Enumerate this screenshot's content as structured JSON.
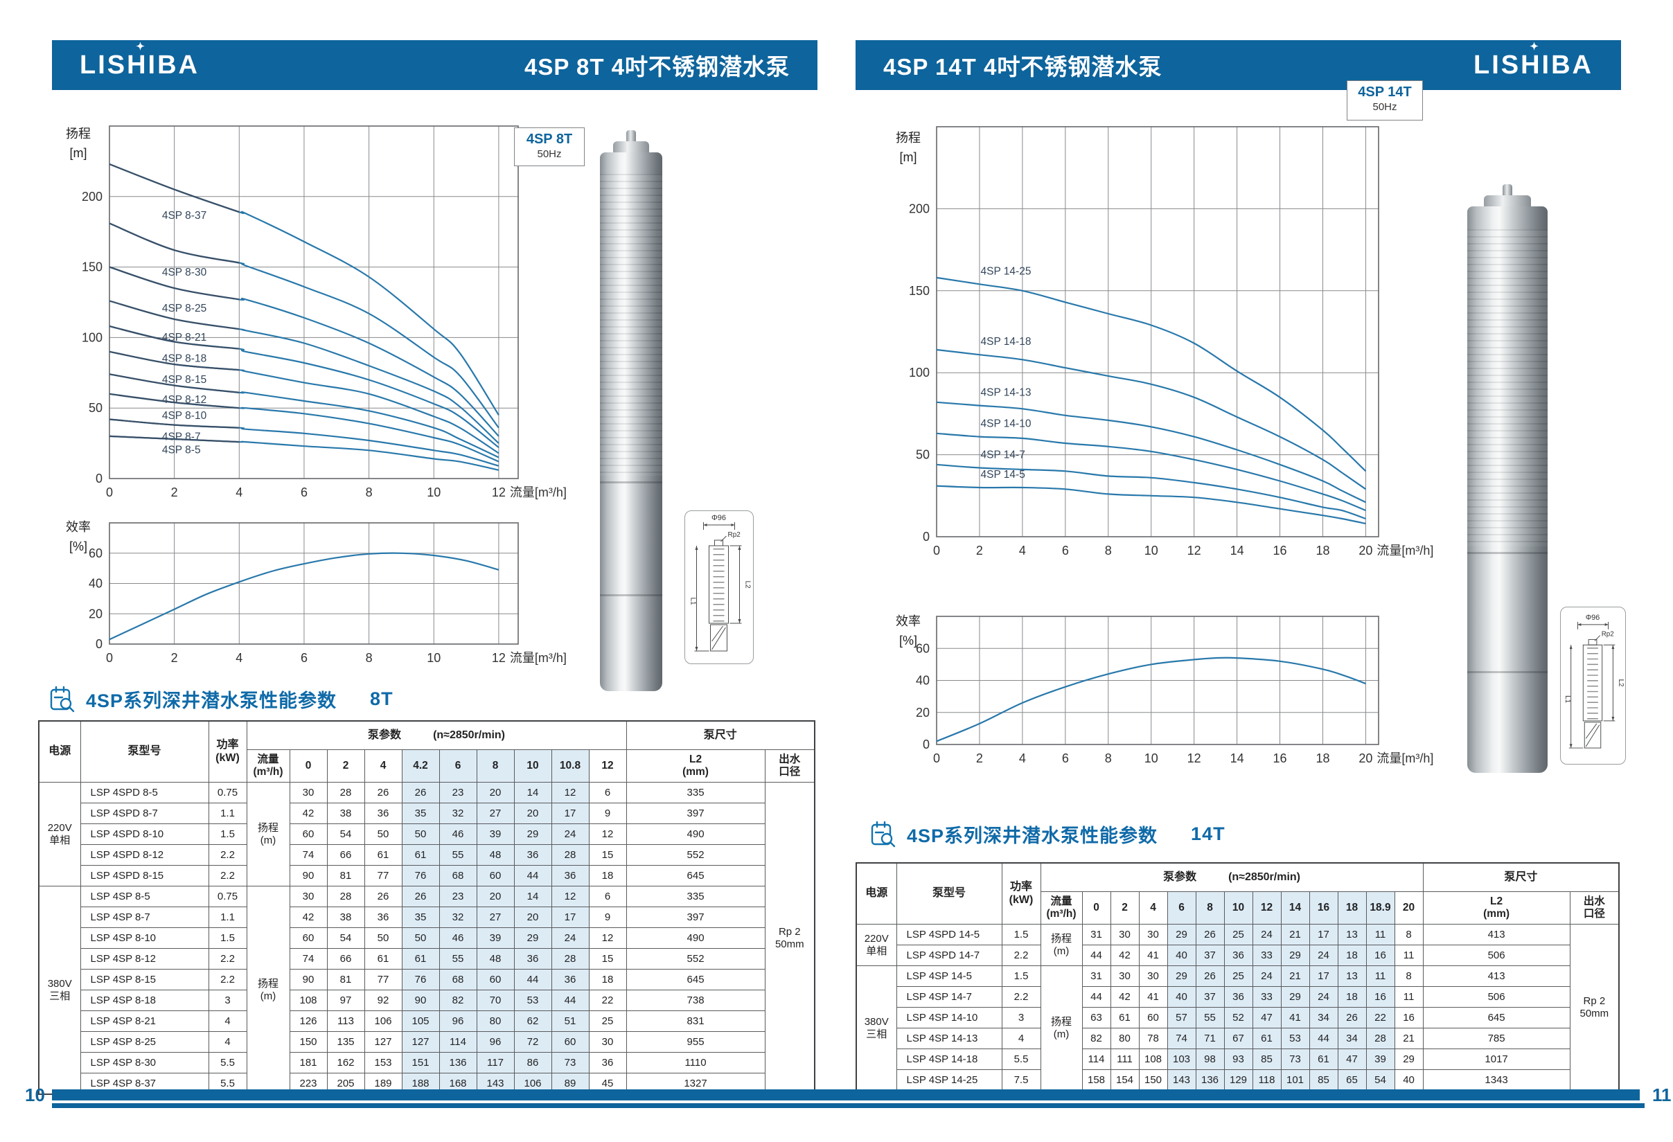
{
  "brand": {
    "logo_text": "LISHIBA"
  },
  "colors": {
    "primary": "#0e649c",
    "curve": "#2878ab",
    "curve_dark": "#3a4f66",
    "highlight": "#ddebf5",
    "title_blue": "#0f6aa8"
  },
  "axis": {
    "head_label": "扬程",
    "head_unit": "[m]",
    "eff_label": "效率",
    "eff_unit": "[%]",
    "flow_unit": "流量[m³/h]"
  },
  "diagram": {
    "diameter": "Φ96",
    "thread": "Rp2",
    "l2": "L2",
    "l1": "L1"
  },
  "footer": {
    "left_page": "10",
    "right_page": "11"
  },
  "left_page": {
    "header_title": "4SP 8T 4吋不锈钢潜水泵",
    "badge": {
      "model": "4SP 8T",
      "freq": "50Hz"
    },
    "section_title": "4SP系列深井潜水泵性能参数",
    "section_code": "8T",
    "table": {
      "headers": {
        "power_source": "电源",
        "model": "泵型号",
        "power": "功率\n(kW)",
        "pump_params": "泵参数",
        "speed": "(n≈2850r/min)",
        "flow": "流量\n(m³/h)",
        "pump_size": "泵尺寸",
        "l2": "L2\n(mm)",
        "outlet": "出水\n口径",
        "head_label": "扬程\n(m)"
      },
      "flow_columns": [
        "0",
        "2",
        "4",
        "4.2",
        "6",
        "8",
        "10",
        "10.8",
        "12"
      ],
      "highlight_flows": [
        "4.2",
        "6",
        "8",
        "10",
        "10.8"
      ],
      "outlet_value": "Rp 2\n50mm",
      "groups": [
        {
          "power_source": "220V\n单相",
          "rows": [
            {
              "model": "LSP 4SPD 8-5",
              "power": "0.75",
              "heads": [
                30,
                28,
                26,
                26,
                23,
                20,
                14,
                12,
                6
              ],
              "l2": "335"
            },
            {
              "model": "LSP 4SPD 8-7",
              "power": "1.1",
              "heads": [
                42,
                38,
                36,
                35,
                32,
                27,
                20,
                17,
                9
              ],
              "l2": "397"
            },
            {
              "model": "LSP 4SPD 8-10",
              "power": "1.5",
              "heads": [
                60,
                54,
                50,
                50,
                46,
                39,
                29,
                24,
                12
              ],
              "l2": "490"
            },
            {
              "model": "LSP 4SPD 8-12",
              "power": "2.2",
              "heads": [
                74,
                66,
                61,
                61,
                55,
                48,
                36,
                28,
                15
              ],
              "l2": "552"
            },
            {
              "model": "LSP 4SPD 8-15",
              "power": "2.2",
              "heads": [
                90,
                81,
                77,
                76,
                68,
                60,
                44,
                36,
                18
              ],
              "l2": "645"
            }
          ]
        },
        {
          "power_source": "380V\n三相",
          "rows": [
            {
              "model": "LSP 4SP 8-5",
              "power": "0.75",
              "heads": [
                30,
                28,
                26,
                26,
                23,
                20,
                14,
                12,
                6
              ],
              "l2": "335"
            },
            {
              "model": "LSP 4SP 8-7",
              "power": "1.1",
              "heads": [
                42,
                38,
                36,
                35,
                32,
                27,
                20,
                17,
                9
              ],
              "l2": "397"
            },
            {
              "model": "LSP 4SP 8-10",
              "power": "1.5",
              "heads": [
                60,
                54,
                50,
                50,
                46,
                39,
                29,
                24,
                12
              ],
              "l2": "490"
            },
            {
              "model": "LSP 4SP 8-12",
              "power": "2.2",
              "heads": [
                74,
                66,
                61,
                61,
                55,
                48,
                36,
                28,
                15
              ],
              "l2": "552"
            },
            {
              "model": "LSP 4SP 8-15",
              "power": "2.2",
              "heads": [
                90,
                81,
                77,
                76,
                68,
                60,
                44,
                36,
                18
              ],
              "l2": "645"
            },
            {
              "model": "LSP 4SP 8-18",
              "power": "3",
              "heads": [
                108,
                97,
                92,
                90,
                82,
                70,
                53,
                44,
                22
              ],
              "l2": "738"
            },
            {
              "model": "LSP 4SP 8-21",
              "power": "4",
              "heads": [
                126,
                113,
                106,
                105,
                96,
                80,
                62,
                51,
                25
              ],
              "l2": "831"
            },
            {
              "model": "LSP 4SP 8-25",
              "power": "4",
              "heads": [
                150,
                135,
                127,
                127,
                114,
                96,
                72,
                60,
                30
              ],
              "l2": "955"
            },
            {
              "model": "LSP 4SP 8-30",
              "power": "5.5",
              "heads": [
                181,
                162,
                153,
                151,
                136,
                117,
                86,
                73,
                36
              ],
              "l2": "1110"
            },
            {
              "model": "LSP 4SP 8-37",
              "power": "5.5",
              "heads": [
                223,
                205,
                189,
                188,
                168,
                143,
                106,
                89,
                45
              ],
              "l2": "1327"
            }
          ]
        }
      ]
    }
  },
  "right_page": {
    "header_title": "4SP 14T 4吋不锈钢潜水泵",
    "badge": {
      "model": "4SP 14T",
      "freq": "50Hz"
    },
    "section_title": "4SP系列深井潜水泵性能参数",
    "section_code": "14T",
    "table": {
      "headers": {
        "power_source": "电源",
        "model": "泵型号",
        "power": "功率\n(kW)",
        "pump_params": "泵参数",
        "speed": "(n≈2850r/min)",
        "flow": "流量\n(m³/h)",
        "pump_size": "泵尺寸",
        "l2": "L2\n(mm)",
        "outlet": "出水\n口径",
        "head_label": "扬程\n(m)"
      },
      "flow_columns": [
        "0",
        "2",
        "4",
        "6",
        "8",
        "10",
        "12",
        "14",
        "16",
        "18",
        "18.9",
        "20"
      ],
      "highlight_flows": [
        "6",
        "8",
        "10",
        "12",
        "14",
        "16",
        "18",
        "18.9"
      ],
      "outlet_value": "Rp 2\n50mm",
      "groups": [
        {
          "power_source": "220V\n单相",
          "rows": [
            {
              "model": "LSP 4SPD 14-5",
              "power": "1.5",
              "heads": [
                31,
                30,
                30,
                29,
                26,
                25,
                24,
                21,
                17,
                13,
                11,
                8
              ],
              "l2": "413"
            },
            {
              "model": "LSP 4SPD 14-7",
              "power": "2.2",
              "heads": [
                44,
                42,
                41,
                40,
                37,
                36,
                33,
                29,
                24,
                18,
                16,
                11
              ],
              "l2": "506"
            }
          ]
        },
        {
          "power_source": "380V\n三相",
          "rows": [
            {
              "model": "LSP 4SP 14-5",
              "power": "1.5",
              "heads": [
                31,
                30,
                30,
                29,
                26,
                25,
                24,
                21,
                17,
                13,
                11,
                8
              ],
              "l2": "413"
            },
            {
              "model": "LSP 4SP 14-7",
              "power": "2.2",
              "heads": [
                44,
                42,
                41,
                40,
                37,
                36,
                33,
                29,
                24,
                18,
                16,
                11
              ],
              "l2": "506"
            },
            {
              "model": "LSP 4SP 14-10",
              "power": "3",
              "heads": [
                63,
                61,
                60,
                57,
                55,
                52,
                47,
                41,
                34,
                26,
                22,
                16
              ],
              "l2": "645"
            },
            {
              "model": "LSP 4SP 14-13",
              "power": "4",
              "heads": [
                82,
                80,
                78,
                74,
                71,
                67,
                61,
                53,
                44,
                34,
                28,
                21
              ],
              "l2": "785"
            },
            {
              "model": "LSP 4SP 14-18",
              "power": "5.5",
              "heads": [
                114,
                111,
                108,
                103,
                98,
                93,
                85,
                73,
                61,
                47,
                39,
                29
              ],
              "l2": "1017"
            },
            {
              "model": "LSP 4SP 14-25",
              "power": "7.5",
              "heads": [
                158,
                154,
                150,
                143,
                136,
                129,
                118,
                101,
                85,
                65,
                54,
                40
              ],
              "l2": "1343"
            }
          ]
        }
      ]
    }
  },
  "chart_data": [
    {
      "id": "head8",
      "type": "line",
      "title": "4SP 8T 50Hz",
      "xlabel": "流量[m³/h]",
      "ylabel": "扬程[m]",
      "x": [
        0,
        2,
        4,
        4.2,
        6,
        8,
        10,
        10.8,
        12
      ],
      "xlim": [
        0,
        12.6
      ],
      "ylim": [
        0,
        250
      ],
      "xticks": [
        0,
        2,
        4,
        6,
        8,
        10,
        12
      ],
      "yticks": [
        50,
        100,
        150,
        200
      ],
      "dark_until_x": 4,
      "label_x": 1.62,
      "label_mode": "below",
      "margins": [
        68,
        12,
        112,
        39
      ],
      "series": [
        {
          "name": "4SP 8-37",
          "values": [
            223,
            205,
            189,
            188,
            168,
            143,
            106,
            89,
            45
          ]
        },
        {
          "name": "4SP 8-30",
          "values": [
            181,
            162,
            153,
            151,
            136,
            117,
            86,
            73,
            36
          ]
        },
        {
          "name": "4SP 8-25",
          "values": [
            150,
            135,
            127,
            127,
            114,
            96,
            72,
            60,
            30
          ]
        },
        {
          "name": "4SP 8-21",
          "values": [
            126,
            113,
            106,
            105,
            96,
            80,
            62,
            51,
            25
          ]
        },
        {
          "name": "4SP 8-18",
          "values": [
            108,
            97,
            92,
            90,
            82,
            70,
            53,
            44,
            22
          ]
        },
        {
          "name": "4SP 8-15",
          "values": [
            90,
            81,
            77,
            76,
            68,
            60,
            44,
            36,
            18
          ]
        },
        {
          "name": "4SP 8-12",
          "values": [
            74,
            66,
            61,
            61,
            55,
            48,
            36,
            28,
            15
          ]
        },
        {
          "name": "4SP 8-10",
          "values": [
            60,
            54,
            50,
            50,
            46,
            39,
            29,
            24,
            12
          ]
        },
        {
          "name": "4SP 8-7",
          "values": [
            42,
            38,
            36,
            35,
            32,
            27,
            20,
            17,
            9
          ]
        },
        {
          "name": "4SP 8-5",
          "values": [
            30,
            28,
            26,
            26,
            23,
            20,
            14,
            12,
            6
          ]
        }
      ]
    },
    {
      "id": "eff8",
      "type": "line",
      "title": "4SP 8T 效率",
      "xlabel": "流量[m³/h]",
      "ylabel": "效率[%]",
      "x": [
        0,
        1,
        2,
        3,
        4,
        5,
        6,
        7,
        8,
        9,
        10,
        11,
        12
      ],
      "xlim": [
        0,
        12.6
      ],
      "ylim": [
        0,
        80
      ],
      "xticks": [
        0,
        2,
        4,
        6,
        8,
        10,
        12
      ],
      "yticks": [
        20,
        40,
        60
      ],
      "margins": [
        68,
        10,
        112,
        35
      ],
      "series": [
        {
          "name": "效率",
          "values": [
            3,
            13,
            23,
            33,
            41,
            48,
            53,
            57,
            59.5,
            60,
            58.5,
            55,
            49
          ]
        }
      ]
    },
    {
      "id": "head14",
      "type": "line",
      "title": "4SP 14T 50Hz",
      "xlabel": "流量[m³/h]",
      "ylabel": "扬程[m]",
      "x": [
        0,
        2,
        4,
        6,
        8,
        10,
        12,
        14,
        16,
        18,
        18.9,
        20
      ],
      "xlim": [
        0,
        20.6
      ],
      "ylim": [
        0,
        250
      ],
      "xticks": [
        0,
        2,
        4,
        6,
        8,
        10,
        12,
        14,
        16,
        18,
        20
      ],
      "yticks": [
        50,
        100,
        150,
        200
      ],
      "label_x": 2.05,
      "label_mode": "above",
      "margins": [
        67,
        11,
        95,
        47
      ],
      "series": [
        {
          "name": "4SP 14-25",
          "values": [
            158,
            154,
            150,
            143,
            136,
            129,
            118,
            101,
            85,
            65,
            54,
            40
          ]
        },
        {
          "name": "4SP 14-18",
          "values": [
            114,
            111,
            108,
            103,
            98,
            93,
            85,
            73,
            61,
            47,
            39,
            29
          ]
        },
        {
          "name": "4SP 14-13",
          "values": [
            82,
            80,
            78,
            74,
            71,
            67,
            61,
            53,
            44,
            34,
            28,
            21
          ]
        },
        {
          "name": "4SP 14-10",
          "values": [
            63,
            61,
            60,
            57,
            55,
            52,
            47,
            41,
            34,
            26,
            22,
            16
          ]
        },
        {
          "name": "4SP 14-7",
          "values": [
            44,
            42,
            41,
            40,
            37,
            36,
            33,
            29,
            24,
            18,
            16,
            11
          ]
        },
        {
          "name": "4SP 14-5",
          "values": [
            31,
            30,
            30,
            29,
            26,
            25,
            24,
            21,
            17,
            13,
            11,
            8
          ]
        }
      ]
    },
    {
      "id": "eff14",
      "type": "line",
      "title": "4SP 14T 效率",
      "xlabel": "流量[m³/h]",
      "ylabel": "效率[%]",
      "x": [
        0,
        2,
        4,
        6,
        8,
        10,
        12,
        13,
        14,
        16,
        18,
        19,
        20
      ],
      "xlim": [
        0,
        20.6
      ],
      "ylim": [
        0,
        80
      ],
      "xticks": [
        0,
        2,
        4,
        6,
        8,
        10,
        12,
        14,
        16,
        18,
        20
      ],
      "yticks": [
        20,
        40,
        60
      ],
      "margins": [
        67,
        10,
        95,
        35
      ],
      "series": [
        {
          "name": "效率",
          "values": [
            2,
            13,
            26,
            36,
            44,
            50,
            53,
            54,
            54,
            52,
            47,
            43,
            38
          ]
        }
      ]
    }
  ]
}
